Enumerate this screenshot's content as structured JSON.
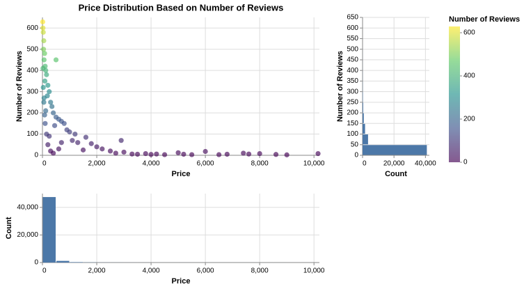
{
  "chart_data": [
    {
      "type": "scatter",
      "title": "Price Distribution Based on Number of Reviews",
      "x_label": "Price",
      "y_label": "Number of Reviews",
      "x": [
        10,
        20,
        30,
        50,
        40,
        80,
        60,
        500,
        100,
        120,
        150,
        90,
        200,
        250,
        180,
        300,
        350,
        120,
        400,
        500,
        600,
        700,
        800,
        450,
        900,
        1000,
        1200,
        1600,
        1100,
        1300,
        1800,
        2000,
        2200,
        2900,
        2500,
        3000,
        3500,
        3800,
        4200,
        4500,
        5000,
        5200,
        6000,
        6500,
        6800,
        7400,
        7600,
        8000,
        8600,
        10150,
        50,
        100,
        150,
        200,
        300,
        400,
        600,
        700,
        250,
        30,
        60,
        80,
        20,
        1500,
        2700,
        3300,
        4000,
        5500,
        9000
      ],
      "values": [
        629,
        600,
        580,
        540,
        500,
        480,
        450,
        450,
        420,
        400,
        380,
        350,
        330,
        300,
        280,
        250,
        230,
        210,
        200,
        180,
        170,
        160,
        150,
        140,
        120,
        110,
        100,
        85,
        70,
        60,
        55,
        40,
        30,
        70,
        20,
        15,
        5,
        8,
        6,
        3,
        12,
        5,
        18,
        3,
        5,
        10,
        6,
        8,
        4,
        8,
        250,
        150,
        100,
        50,
        20,
        10,
        30,
        60,
        90,
        320,
        270,
        190,
        410,
        25,
        10,
        6,
        4,
        3,
        2
      ],
      "xlim": [
        0,
        10200
      ],
      "ylim": [
        0,
        650
      ],
      "xticks": [
        0,
        {
          "value": 2000,
          "label": "2,000"
        },
        {
          "value": 4000,
          "label": "4,000"
        },
        {
          "value": 6000,
          "label": "6,000"
        },
        {
          "value": 8000,
          "label": "8,000"
        },
        {
          "value": 10000,
          "label": "10,000"
        }
      ],
      "yticks": [
        0,
        100,
        200,
        300,
        400,
        500,
        600
      ],
      "grid": true,
      "legend_title": "Number of Reviews",
      "color_scale": [
        "#440154",
        "#3b528b",
        "#21918c",
        "#5ec962",
        "#fde725"
      ],
      "color_lim": [
        0,
        629
      ],
      "color_ticks": [
        0,
        200,
        400,
        600
      ],
      "opacity": 0.65
    },
    {
      "type": "histogram",
      "orientation": "horizontal",
      "x_label": "Count",
      "y_label": "Number of Reviews",
      "bins": [
        0,
        50,
        100,
        150,
        200,
        250,
        300,
        350,
        400,
        450,
        500,
        550,
        600,
        650
      ],
      "values": [
        40900,
        3500,
        1600,
        800,
        400,
        200,
        100,
        60,
        40,
        20,
        10,
        5,
        3
      ],
      "xlim": [
        0,
        42500
      ],
      "ylim": [
        0,
        650
      ],
      "xticks": [
        0,
        {
          "value": 20000,
          "label": "20,000"
        },
        {
          "value": 40000,
          "label": "40,000"
        }
      ],
      "yticks": [
        0,
        50,
        100,
        150,
        200,
        250,
        300,
        350,
        400,
        450,
        500,
        550,
        600,
        650
      ],
      "grid": true,
      "color": "#4c78a8"
    },
    {
      "type": "histogram",
      "orientation": "vertical",
      "x_label": "Price",
      "y_label": "Count",
      "bins": [
        0,
        500,
        1000,
        1500,
        2000,
        2500,
        3000,
        3500,
        4000,
        4500,
        5000,
        5500,
        6000,
        6500,
        7000,
        7500,
        8000,
        8500,
        9000,
        9500,
        10000
      ],
      "values": [
        47500,
        1200,
        300,
        120,
        60,
        50,
        30,
        20,
        15,
        15,
        20,
        8,
        5,
        5,
        5,
        5,
        3,
        3,
        2,
        2
      ],
      "xlim": [
        0,
        10200
      ],
      "ylim": [
        0,
        50000
      ],
      "xticks": [
        0,
        {
          "value": 2000,
          "label": "2,000"
        },
        {
          "value": 4000,
          "label": "4,000"
        },
        {
          "value": 6000,
          "label": "6,000"
        },
        {
          "value": 8000,
          "label": "8,000"
        },
        {
          "value": 10000,
          "label": "10,000"
        }
      ],
      "yticks": [
        0,
        {
          "value": 20000,
          "label": "20,000"
        },
        {
          "value": 40000,
          "label": "40,000"
        }
      ],
      "grid": true,
      "color": "#4c78a8"
    }
  ]
}
